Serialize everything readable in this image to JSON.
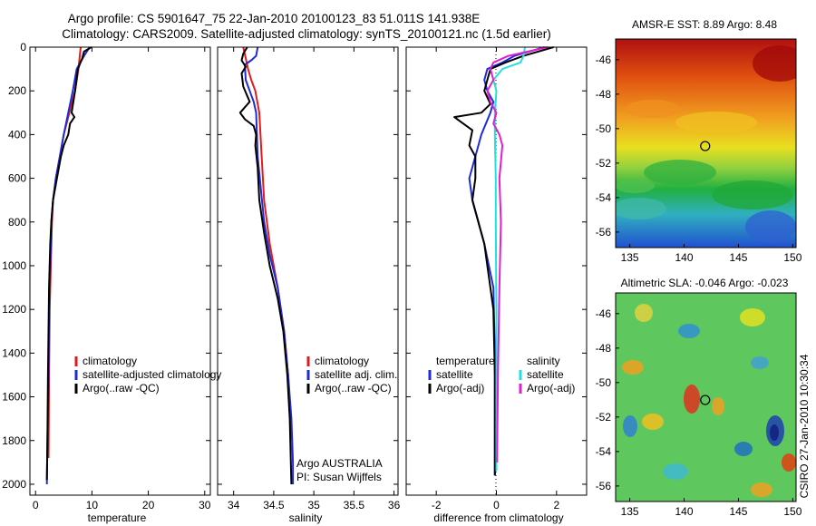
{
  "header": {
    "line1": "Argo profile: CS 5901647_75 22-Jan-2010 20100123_83 51.011S 141.938E",
    "line2": "Climatology: CARS2009. Satellite-adjusted climatology: synTS_20100121.nc (1.5d earlier)"
  },
  "side_stamp": "CSIRO 27-Jan-2010 10:30:34",
  "colors": {
    "climatology": "#e41a1c",
    "satellite": "#1f2bd6",
    "argo": "#000000",
    "sat_salinity": "#22e0e0",
    "argo_salinity": "#e020d0"
  },
  "chart_data": [
    {
      "type": "line",
      "id": "temperature",
      "xlabel": "temperature",
      "ylabel": "",
      "xlim": [
        -1,
        31
      ],
      "ylim": [
        2050,
        0
      ],
      "xticks": [
        0,
        10,
        20,
        30
      ],
      "yticks": [
        0,
        200,
        400,
        600,
        800,
        1000,
        1200,
        1400,
        1600,
        1800,
        2000
      ],
      "legend": [
        "climatology",
        "satellite-adjusted climatology",
        "Argo(..raw -QC)"
      ],
      "series": [
        {
          "name": "climatology",
          "color_key": "climatology",
          "x": [
            8.0,
            7.6,
            7.0,
            6.0,
            5.0,
            4.3,
            3.6,
            3.1,
            2.9,
            2.7,
            2.5,
            2.4,
            2.3
          ],
          "y": [
            0,
            100,
            200,
            300,
            400,
            500,
            600,
            700,
            800,
            1000,
            1200,
            1500,
            1880
          ]
        },
        {
          "name": "satellite-adjusted climatology",
          "color_key": "satellite",
          "x": [
            9.6,
            8.6,
            7.3,
            6.6,
            5.8,
            5.0,
            4.3,
            3.6,
            3.1,
            2.8,
            2.6,
            2.4,
            2.3,
            2.1,
            2.0
          ],
          "y": [
            0,
            40,
            100,
            200,
            300,
            400,
            500,
            600,
            700,
            800,
            1000,
            1200,
            1500,
            1800,
            2000
          ]
        },
        {
          "name": "Argo(..raw -QC)",
          "color_key": "argo",
          "x": [
            9.9,
            8.6,
            8.3,
            7.5,
            7.0,
            6.4,
            6.9,
            6.1,
            5.8,
            5.0,
            4.5,
            3.8,
            3.1,
            2.8,
            2.6,
            2.4,
            2.3,
            2.2,
            2.1,
            2.0
          ],
          "y": [
            0,
            20,
            50,
            100,
            200,
            300,
            320,
            350,
            400,
            450,
            500,
            600,
            700,
            800,
            900,
            1100,
            1300,
            1500,
            1800,
            1980
          ]
        }
      ]
    },
    {
      "type": "line",
      "id": "salinity",
      "xlabel": "salinity",
      "ylabel": "",
      "xlim": [
        33.8,
        36.05
      ],
      "ylim": [
        2050,
        0
      ],
      "xticks": [
        34,
        34.5,
        35,
        35.5,
        36
      ],
      "xtick_labels": [
        "34",
        "34.5",
        "35",
        "35.5",
        "36"
      ],
      "yticks": [
        0,
        200,
        400,
        600,
        800,
        1000,
        1200,
        1400,
        1600,
        1800,
        2000
      ],
      "legend": [
        "climatology",
        "satellite adj. clim.",
        "Argo(..raw -QC)"
      ],
      "annotations": [
        "Argo AUSTRALIA",
        "PI: Susan Wijffels"
      ],
      "series": [
        {
          "name": "climatology",
          "color_key": "climatology",
          "x": [
            34.12,
            34.15,
            34.18,
            34.22,
            34.27,
            34.32,
            34.35,
            34.38,
            34.45,
            34.55,
            34.63,
            34.68,
            34.71,
            34.72
          ],
          "y": [
            0,
            50,
            100,
            150,
            200,
            300,
            500,
            700,
            900,
            1100,
            1300,
            1500,
            1700,
            1800
          ]
        },
        {
          "name": "satellite adj. clim.",
          "color_key": "satellite",
          "x": [
            34.3,
            34.28,
            34.22,
            34.14,
            34.15,
            34.2,
            34.25,
            34.28,
            34.3,
            34.38,
            34.45,
            34.55,
            34.63,
            34.68,
            34.72,
            34.74,
            34.74
          ],
          "y": [
            0,
            40,
            60,
            80,
            150,
            200,
            250,
            300,
            500,
            800,
            950,
            1100,
            1300,
            1500,
            1700,
            1900,
            2000
          ]
        },
        {
          "name": "Argo(..raw -QC)",
          "color_key": "argo",
          "x": [
            34.17,
            34.12,
            34.1,
            34.15,
            34.1,
            34.12,
            34.2,
            34.08,
            34.14,
            34.25,
            34.28,
            34.27,
            34.3,
            34.32,
            34.38,
            34.45,
            34.55,
            34.62,
            34.67,
            34.7,
            34.71,
            34.72
          ],
          "y": [
            0,
            30,
            60,
            90,
            120,
            180,
            250,
            300,
            330,
            360,
            400,
            450,
            550,
            700,
            850,
            1000,
            1150,
            1300,
            1500,
            1700,
            1850,
            2000
          ]
        }
      ]
    },
    {
      "type": "line",
      "id": "difference",
      "xlabel": "difference from climatology",
      "ylabel": "",
      "xlim": [
        -3,
        3
      ],
      "ylim": [
        2050,
        0
      ],
      "xticks": [
        -2,
        0,
        2
      ],
      "yticks": [
        0,
        200,
        400,
        600,
        800,
        1000,
        1200,
        1400,
        1600,
        1800,
        2000
      ],
      "reference_line": 0,
      "legend_groups": [
        {
          "title": "temperature",
          "entries": [
            "satellite",
            "Argo(-adj)"
          ]
        },
        {
          "title": "salinity",
          "entries": [
            "satellite",
            "Argo(-adj)"
          ]
        }
      ],
      "series": [
        {
          "name": "temperature satellite",
          "color_key": "satellite",
          "x": [
            1.6,
            0.6,
            0.2,
            -0.3,
            -0.4,
            -0.3,
            -0.1,
            -0.2,
            -0.5,
            -0.7,
            -0.9,
            -0.8,
            -0.6,
            -0.4,
            -0.1,
            -0.05,
            -0.05,
            -0.05
          ],
          "y": [
            0,
            40,
            70,
            100,
            150,
            200,
            250,
            300,
            400,
            500,
            600,
            700,
            800,
            900,
            1100,
            1400,
            1700,
            1960
          ]
        },
        {
          "name": "temperature Argo(-adj)",
          "color_key": "argo",
          "x": [
            1.9,
            0.9,
            0.3,
            -0.2,
            -0.3,
            -0.4,
            -0.2,
            -0.5,
            -1.4,
            -1.1,
            -0.8,
            -0.9,
            -0.7,
            -0.7,
            -0.8,
            -0.6,
            -0.4,
            -0.3,
            -0.1,
            -0.05,
            -0.05
          ],
          "y": [
            0,
            40,
            70,
            100,
            150,
            200,
            260,
            300,
            320,
            350,
            380,
            450,
            500,
            600,
            700,
            800,
            900,
            1000,
            1200,
            1500,
            1960
          ]
        },
        {
          "name": "salinity satellite",
          "color_key": "sat_salinity",
          "x": [
            0.95,
            0.9,
            0.8,
            0.2,
            -0.1,
            0.0,
            -0.05,
            -0.05,
            -0.02,
            -0.02,
            0.0,
            0.0,
            0.0
          ],
          "y": [
            0,
            40,
            70,
            100,
            150,
            200,
            300,
            400,
            600,
            800,
            1200,
            1600,
            1940
          ]
        },
        {
          "name": "salinity Argo(-adj)",
          "color_key": "argo_salinity",
          "x": [
            1.7,
            0.4,
            -0.1,
            -0.2,
            -0.1,
            -0.3,
            -0.2,
            0.0,
            -0.1,
            0.1,
            0.2,
            0.1,
            0.15,
            0.1,
            0.05,
            0.02
          ],
          "y": [
            0,
            40,
            70,
            100,
            150,
            200,
            250,
            300,
            350,
            400,
            450,
            600,
            800,
            1100,
            1500,
            1900
          ]
        }
      ]
    },
    {
      "type": "heatmap",
      "id": "sst_map",
      "title": "AMSR-E SST: 8.89 Argo: 8.48",
      "xlim": [
        133.7,
        150.3
      ],
      "ylim": [
        -56.9,
        -44.8
      ],
      "xticks": [
        135,
        140,
        145,
        150
      ],
      "yticks": [
        -46,
        -48,
        -50,
        -52,
        -54,
        -56
      ],
      "marker": {
        "lon": 141.938,
        "lat": -51.011
      }
    },
    {
      "type": "heatmap",
      "id": "sla_map",
      "title": "Altimetric SLA: -0.046 Argo: -0.023",
      "xlim": [
        133.7,
        150.3
      ],
      "ylim": [
        -56.9,
        -44.8
      ],
      "xticks": [
        135,
        140,
        145,
        150
      ],
      "yticks": [
        -46,
        -48,
        -50,
        -52,
        -54,
        -56
      ],
      "marker": {
        "lon": 141.938,
        "lat": -51.011
      }
    }
  ]
}
